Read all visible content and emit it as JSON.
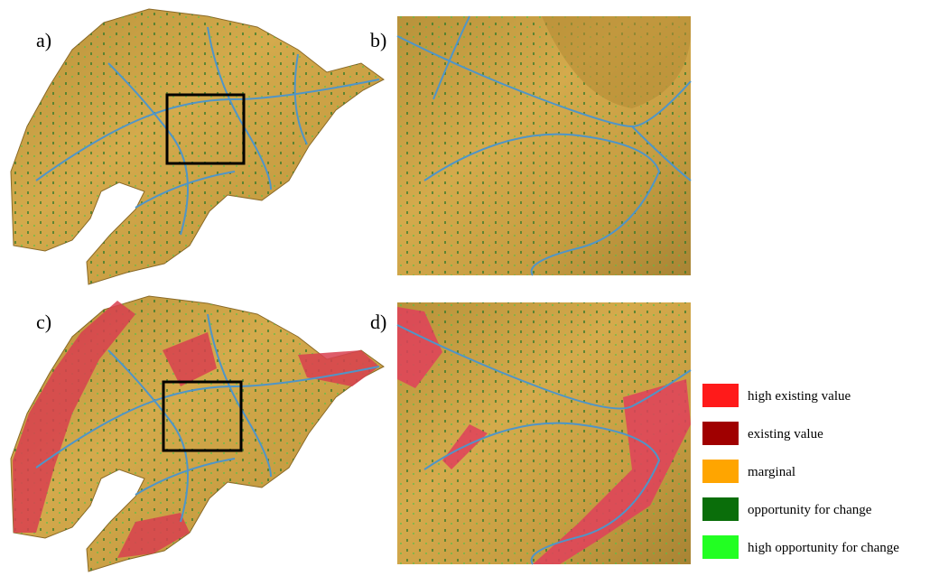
{
  "panels": [
    {
      "label": "a)"
    },
    {
      "label": "b)"
    },
    {
      "label": "c)"
    },
    {
      "label": "d)"
    }
  ],
  "legend": [
    {
      "label": "high existing value",
      "color": "#ff1a1a"
    },
    {
      "label": "existing value",
      "color": "#a00000"
    },
    {
      "label": "marginal",
      "color": "#ffa500"
    },
    {
      "label": "opportunity for change",
      "color": "#0a6e0a"
    },
    {
      "label": "high opportunity for change",
      "color": "#22ff22"
    }
  ]
}
